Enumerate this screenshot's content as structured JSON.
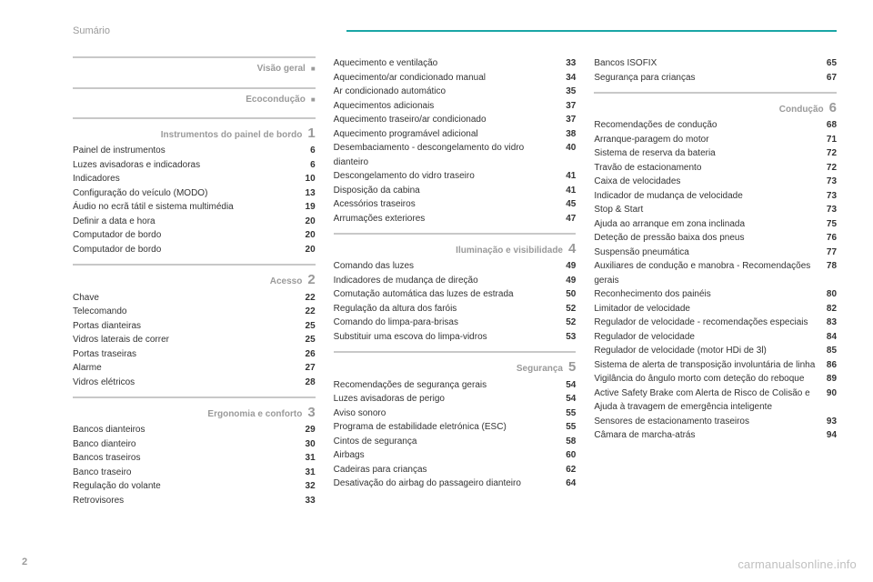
{
  "header": {
    "title": "Sumário"
  },
  "pageNumber": "2",
  "watermark": "carmanualsonline.info",
  "columns": [
    {
      "sections": [
        {
          "title": "Visão geral",
          "marker": "■",
          "items": []
        },
        {
          "title": "Ecocondução",
          "marker": "■",
          "items": []
        },
        {
          "title": "Instrumentos do painel de bordo",
          "num": "1",
          "items": [
            {
              "label": "Painel de instrumentos",
              "page": "6"
            },
            {
              "label": "Luzes avisadoras e indicadoras",
              "page": "6"
            },
            {
              "label": "Indicadores",
              "page": "10"
            },
            {
              "label": "Configuração do veículo (MODO)",
              "page": "13"
            },
            {
              "label": "Áudio no ecrã tátil e sistema multimédia",
              "page": "19"
            },
            {
              "label": "Definir a data e hora",
              "page": "20"
            },
            {
              "label": "Computador de bordo",
              "page": "20"
            },
            {
              "label": "Computador de bordo",
              "page": "20"
            }
          ]
        },
        {
          "title": "Acesso",
          "num": "2",
          "items": [
            {
              "label": "Chave",
              "page": "22"
            },
            {
              "label": "Telecomando",
              "page": "22"
            },
            {
              "label": "Portas dianteiras",
              "page": "25"
            },
            {
              "label": "Vidros laterais de correr",
              "page": "25"
            },
            {
              "label": "Portas traseiras",
              "page": "26"
            },
            {
              "label": "Alarme",
              "page": "27"
            },
            {
              "label": "Vidros elétricos",
              "page": "28"
            }
          ]
        },
        {
          "title": "Ergonomia e conforto",
          "num": "3",
          "items": [
            {
              "label": "Bancos dianteiros",
              "page": "29"
            },
            {
              "label": "Banco dianteiro",
              "page": "30"
            },
            {
              "label": "Bancos traseiros",
              "page": "31"
            },
            {
              "label": "Banco traseiro",
              "page": "31"
            },
            {
              "label": "Regulação do volante",
              "page": "32"
            },
            {
              "label": "Retrovisores",
              "page": "33"
            }
          ]
        }
      ]
    },
    {
      "sections": [
        {
          "continued": true,
          "items": [
            {
              "label": "Aquecimento e ventilação",
              "page": "33"
            },
            {
              "label": "Aquecimento/ar condicionado manual",
              "page": "34"
            },
            {
              "label": "Ar condicionado automático",
              "page": "35"
            },
            {
              "label": "Aquecimentos adicionais",
              "page": "37"
            },
            {
              "label": "Aquecimento traseiro/ar condicionado",
              "page": "37"
            },
            {
              "label": "Aquecimento programável adicional",
              "page": "38"
            },
            {
              "label": "Desembaciamento - descongelamento do vidro dianteiro",
              "page": "40"
            },
            {
              "label": "Descongelamento do vidro traseiro",
              "page": "41"
            },
            {
              "label": "Disposição da cabina",
              "page": "41"
            },
            {
              "label": "Acessórios traseiros",
              "page": "45"
            },
            {
              "label": "Arrumações exteriores",
              "page": "47"
            }
          ]
        },
        {
          "title": "Iluminação e visibilidade",
          "num": "4",
          "items": [
            {
              "label": "Comando das luzes",
              "page": "49"
            },
            {
              "label": "Indicadores de mudança de direção",
              "page": "49"
            },
            {
              "label": "Comutação automática das luzes de estrada",
              "page": "50"
            },
            {
              "label": "Regulação da altura dos faróis",
              "page": "52"
            },
            {
              "label": "Comando do limpa-para-brisas",
              "page": "52"
            },
            {
              "label": "Substituir uma escova do limpa-vidros",
              "page": "53"
            }
          ]
        },
        {
          "title": "Segurança",
          "num": "5",
          "items": [
            {
              "label": "Recomendações de segurança gerais",
              "page": "54"
            },
            {
              "label": "Luzes avisadoras de perigo",
              "page": "54"
            },
            {
              "label": "Aviso sonoro",
              "page": "55"
            },
            {
              "label": "Programa de estabilidade eletrónica (ESC)",
              "page": "55"
            },
            {
              "label": "Cintos de segurança",
              "page": "58"
            },
            {
              "label": "Airbags",
              "page": "60"
            },
            {
              "label": "Cadeiras para crianças",
              "page": "62"
            },
            {
              "label": "Desativação do airbag do passageiro dianteiro",
              "page": "64"
            }
          ]
        }
      ]
    },
    {
      "sections": [
        {
          "continued": true,
          "items": [
            {
              "label": "Bancos ISOFIX",
              "page": "65"
            },
            {
              "label": "Segurança para crianças",
              "page": "67"
            }
          ]
        },
        {
          "title": "Condução",
          "num": "6",
          "items": [
            {
              "label": "Recomendações de condução",
              "page": "68"
            },
            {
              "label": "Arranque-paragem do motor",
              "page": "71"
            },
            {
              "label": "Sistema de reserva da bateria",
              "page": "72"
            },
            {
              "label": "Travão de estacionamento",
              "page": "72"
            },
            {
              "label": "Caixa de velocidades",
              "page": "73"
            },
            {
              "label": "Indicador de mudança de velocidade",
              "page": "73"
            },
            {
              "label": "Stop & Start",
              "page": "73"
            },
            {
              "label": "Ajuda ao arranque em zona inclinada",
              "page": "75"
            },
            {
              "label": "Deteção de pressão baixa dos pneus",
              "page": "76"
            },
            {
              "label": "Suspensão pneumática",
              "page": "77"
            },
            {
              "label": "Auxiliares de condução e manobra - Recomendações gerais",
              "page": "78"
            },
            {
              "label": "Reconhecimento dos painéis",
              "page": "80"
            },
            {
              "label": "Limitador de velocidade",
              "page": "82"
            },
            {
              "label": "Regulador de velocidade - recomendações especiais",
              "page": "83"
            },
            {
              "label": "Regulador de velocidade",
              "page": "84"
            },
            {
              "label": "Regulador de velocidade (motor HDi de 3l)",
              "page": "85"
            },
            {
              "label": "Sistema de alerta de transposição involuntária de linha",
              "page": "86"
            },
            {
              "label": "Vigilância do ângulo morto com deteção do reboque",
              "page": "89"
            },
            {
              "label": "Active Safety Brake com Alerta de Risco de Colisão e Ajuda à travagem de emergência inteligente",
              "page": "90"
            },
            {
              "label": "Sensores de estacionamento traseiros",
              "page": "93"
            },
            {
              "label": "Câmara de marcha-atrás",
              "page": "94"
            }
          ]
        }
      ]
    }
  ]
}
